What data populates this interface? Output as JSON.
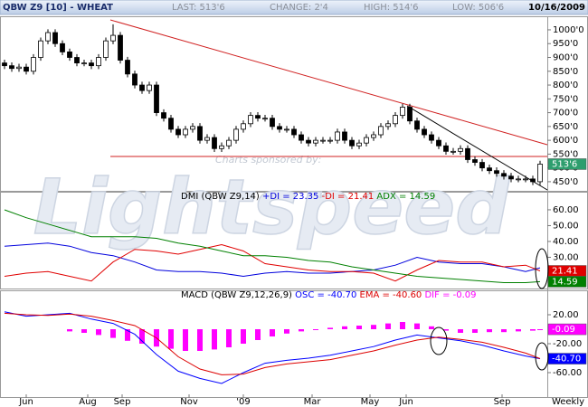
{
  "chart_data": [
    {
      "type": "candlestick",
      "title": "QBW Z9 [10] - WHEAT",
      "stats": [
        "LAST: 513'6",
        "CHANGE: 2'4",
        "HIGH: 514'6",
        "LOW: 506'6"
      ],
      "date": "10/16/2009",
      "sponsor": "Charts sponsored by:",
      "watermark": "Lightspeed",
      "xlim": [
        -0.625,
        75
      ],
      "ylim": [
        417,
        1049
      ],
      "yticks": [
        {
          "value": 1000,
          "label": "1000'0"
        },
        {
          "value": 950,
          "label": "950'0"
        },
        {
          "value": 900,
          "label": "900'0"
        },
        {
          "value": 850,
          "label": "850'0"
        },
        {
          "value": 800,
          "label": "800'0"
        },
        {
          "value": 750,
          "label": "750'0"
        },
        {
          "value": 700,
          "label": "700'0"
        },
        {
          "value": 650,
          "label": "650'0"
        },
        {
          "value": 600,
          "label": "600'0"
        },
        {
          "value": 550,
          "label": "550'0"
        },
        {
          "value": 500,
          "label": "500'0"
        },
        {
          "value": 450,
          "label": "450'0"
        }
      ],
      "x_ticks": [
        {
          "value": 3,
          "label": "Jun"
        },
        {
          "value": 11.5,
          "label": "Aug"
        },
        {
          "value": 16.25,
          "label": "Sep"
        },
        {
          "value": 25.5,
          "label": "Nov"
        },
        {
          "value": 33,
          "label": "'09"
        },
        {
          "value": 42.5,
          "label": "Mar"
        },
        {
          "value": 50.5,
          "label": "May"
        },
        {
          "value": 55.5,
          "label": "Jun"
        },
        {
          "value": 68.75,
          "label": "Sep"
        }
      ],
      "x_axis_label": "Weekly",
      "up_color": "#ffffff",
      "down_color": "#000000",
      "open": [
        880,
        870,
        860,
        865,
        850,
        900,
        960,
        990,
        950,
        920,
        900,
        880,
        880,
        870,
        900,
        960,
        980,
        890,
        840,
        800,
        780,
        800,
        700,
        680,
        640,
        620,
        640,
        650,
        600,
        610,
        570,
        580,
        600,
        640,
        660,
        690,
        680,
        680,
        650,
        640,
        640,
        620,
        600,
        590,
        600,
        600,
        600,
        630,
        600,
        580,
        590,
        610,
        620,
        650,
        660,
        690,
        720,
        670,
        640,
        620,
        600,
        580,
        560,
        560,
        570,
        530,
        520,
        500,
        490,
        480,
        470,
        460,
        460,
        460,
        450
      ],
      "high": [
        892,
        882,
        877,
        877,
        912,
        972,
        1002,
        1002,
        962,
        932,
        912,
        892,
        892,
        912,
        972,
        1020,
        992,
        902,
        852,
        812,
        812,
        812,
        712,
        692,
        652,
        652,
        662,
        662,
        622,
        622,
        592,
        612,
        652,
        672,
        702,
        702,
        692,
        692,
        662,
        652,
        652,
        632,
        612,
        612,
        612,
        612,
        642,
        642,
        612,
        602,
        622,
        632,
        662,
        672,
        702,
        732,
        732,
        682,
        652,
        632,
        612,
        592,
        572,
        582,
        582,
        542,
        532,
        512,
        502,
        492,
        482,
        472,
        472,
        472,
        526
      ],
      "low": [
        858,
        848,
        848,
        838,
        838,
        888,
        948,
        938,
        908,
        888,
        868,
        868,
        858,
        858,
        888,
        948,
        878,
        828,
        788,
        768,
        768,
        688,
        668,
        628,
        608,
        608,
        628,
        588,
        588,
        558,
        558,
        568,
        588,
        628,
        648,
        668,
        668,
        638,
        628,
        628,
        608,
        588,
        578,
        578,
        588,
        588,
        588,
        588,
        568,
        568,
        578,
        598,
        608,
        638,
        648,
        678,
        658,
        628,
        608,
        588,
        568,
        548,
        548,
        548,
        518,
        508,
        488,
        478,
        468,
        458,
        448,
        448,
        448,
        438,
        438
      ],
      "close": [
        870,
        860,
        865,
        850,
        900,
        960,
        990,
        950,
        920,
        900,
        880,
        880,
        870,
        900,
        960,
        980,
        890,
        840,
        800,
        780,
        800,
        700,
        680,
        640,
        620,
        640,
        650,
        600,
        610,
        570,
        580,
        600,
        640,
        660,
        690,
        680,
        680,
        650,
        640,
        640,
        620,
        600,
        590,
        600,
        600,
        600,
        630,
        600,
        580,
        590,
        610,
        620,
        650,
        660,
        690,
        720,
        670,
        640,
        620,
        600,
        580,
        560,
        560,
        570,
        530,
        520,
        500,
        490,
        480,
        470,
        460,
        460,
        460,
        450,
        513.75
      ],
      "last_label": "513'6",
      "last_color": "#2e9e6e"
    },
    {
      "type": "line",
      "title": "DMI (QBW Z9,14)",
      "xlim": [
        -0.625,
        75
      ],
      "ylim": [
        9.7,
        71.4
      ],
      "yticks": [
        {
          "value": 60,
          "label": "60.00"
        },
        {
          "value": 50,
          "label": "50.00"
        },
        {
          "value": 40,
          "label": "40.00"
        },
        {
          "value": 30,
          "label": "30.00"
        },
        {
          "value": 20,
          "label": "20.00"
        }
      ],
      "x": [
        0,
        3,
        6,
        9,
        12,
        15,
        18,
        21,
        24,
        27,
        30,
        33,
        36,
        39,
        42,
        45,
        48,
        51,
        54,
        57,
        60,
        63,
        66,
        69,
        72,
        74
      ],
      "series": [
        {
          "name": "+DI = 23.35",
          "color": "#0000dd",
          "values": [
            37,
            38,
            39,
            37,
            33,
            31,
            27,
            22,
            21,
            21,
            20,
            18,
            20,
            21,
            20,
            20,
            21,
            22,
            25,
            30,
            27,
            26,
            26,
            24,
            21,
            23.35
          ]
        },
        {
          "name": "-DI = 21.41",
          "color": "#e00000",
          "values": [
            18,
            20,
            21,
            18,
            15,
            27,
            35,
            34,
            32,
            35,
            38,
            34,
            26,
            24,
            22,
            21,
            21,
            20,
            15,
            22,
            28,
            27,
            27,
            24,
            25,
            21.41
          ],
          "last_label": "21.41"
        },
        {
          "name": "ADX = 14.59",
          "color": "#008000",
          "values": [
            60,
            55,
            51,
            47,
            43,
            43,
            43,
            42,
            39,
            37,
            34,
            31,
            31,
            30,
            28,
            27,
            24,
            22,
            20,
            18,
            17,
            16,
            15,
            14,
            14,
            14.59
          ],
          "last_label": "14.59"
        }
      ]
    },
    {
      "type": "line",
      "title": "MACD (QBW Z9,12,26,9)",
      "xlim": [
        -0.625,
        75
      ],
      "ylim": [
        -95,
        53.75
      ],
      "yticks": [
        {
          "value": 20,
          "label": "20.00"
        },
        {
          "value": -20,
          "label": "-20.00"
        },
        {
          "value": -60,
          "label": "-60.00"
        }
      ],
      "x": [
        0,
        3,
        6,
        9,
        12,
        15,
        18,
        21,
        24,
        27,
        30,
        33,
        36,
        39,
        42,
        45,
        48,
        51,
        54,
        57,
        60,
        63,
        66,
        69,
        72,
        74
      ],
      "series": [
        {
          "name": "OSC = -40.70",
          "color": "#0000ff",
          "values": [
            24,
            18,
            20,
            22,
            14,
            8,
            -7,
            -35,
            -58,
            -68,
            -75,
            -60,
            -47,
            -43,
            -40,
            -36,
            -30,
            -24,
            -15,
            -8,
            -12,
            -16,
            -22,
            -30,
            -37,
            -40.7
          ],
          "last_label": "-40.70"
        },
        {
          "name": "EMA = -40.60",
          "color": "#dd0000",
          "values": [
            22,
            20,
            19,
            21,
            18,
            12,
            5,
            -12,
            -38,
            -55,
            -63,
            -62,
            -53,
            -48,
            -45,
            -42,
            -36,
            -30,
            -22,
            -15,
            -11,
            -14,
            -18,
            -25,
            -33,
            -40.6
          ]
        }
      ],
      "histogram": {
        "name": "DIF = -0.09",
        "color": "#ff00ff",
        "x": [
          9,
          11,
          13,
          15,
          17,
          19,
          21,
          23,
          25,
          27,
          29,
          31,
          33,
          35,
          37,
          39,
          41,
          43,
          45,
          47,
          49,
          51,
          53,
          55,
          57,
          59,
          61,
          63,
          65,
          67,
          69,
          71,
          73,
          74
        ],
        "values": [
          -3,
          -5,
          -8,
          -12,
          -16,
          -20,
          -24,
          -27,
          -30,
          -30,
          -28,
          -25,
          -20,
          -15,
          -10,
          -6,
          -3,
          0,
          2,
          4,
          5,
          6,
          8,
          10,
          8,
          4,
          -2,
          -5,
          -5,
          -4,
          -4,
          -3,
          -2,
          -0.09
        ],
        "last_label": "-0.09"
      }
    }
  ]
}
